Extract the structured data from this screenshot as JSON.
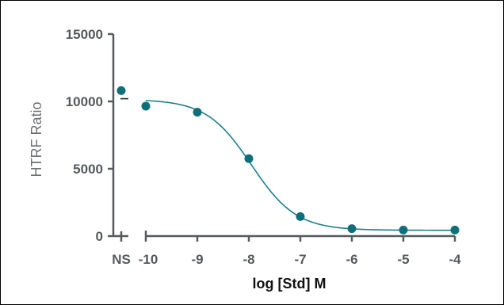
{
  "chart_data": {
    "type": "scatter",
    "title": "",
    "xlabel": "log [Std] M",
    "ylabel": "HTRF Ratio",
    "ylim": [
      0,
      15000
    ],
    "xlim": [
      -10,
      -4
    ],
    "y_ticks": [
      "0",
      "5000",
      "10000",
      "15000"
    ],
    "x_ticks": [
      "-10",
      "-9",
      "-8",
      "-7",
      "-6",
      "-5",
      "-4"
    ],
    "ns_label": "NS",
    "ns_point": {
      "y": 10800,
      "mean": 10200
    },
    "series": [
      {
        "x": [
          -10,
          -9,
          -8,
          -7,
          -6,
          -5,
          -4
        ],
        "y": [
          9650,
          9200,
          5750,
          1450,
          550,
          450,
          450
        ]
      }
    ],
    "curve": {
      "top": 10150,
      "bottom": 430,
      "log_ec50": -7.95,
      "hill_slope": -1.0
    },
    "grid": false,
    "legend": "none",
    "colors": {
      "points": "#0e6f7b",
      "curve": "#1b7f8a",
      "axis": "#555a5c"
    }
  }
}
